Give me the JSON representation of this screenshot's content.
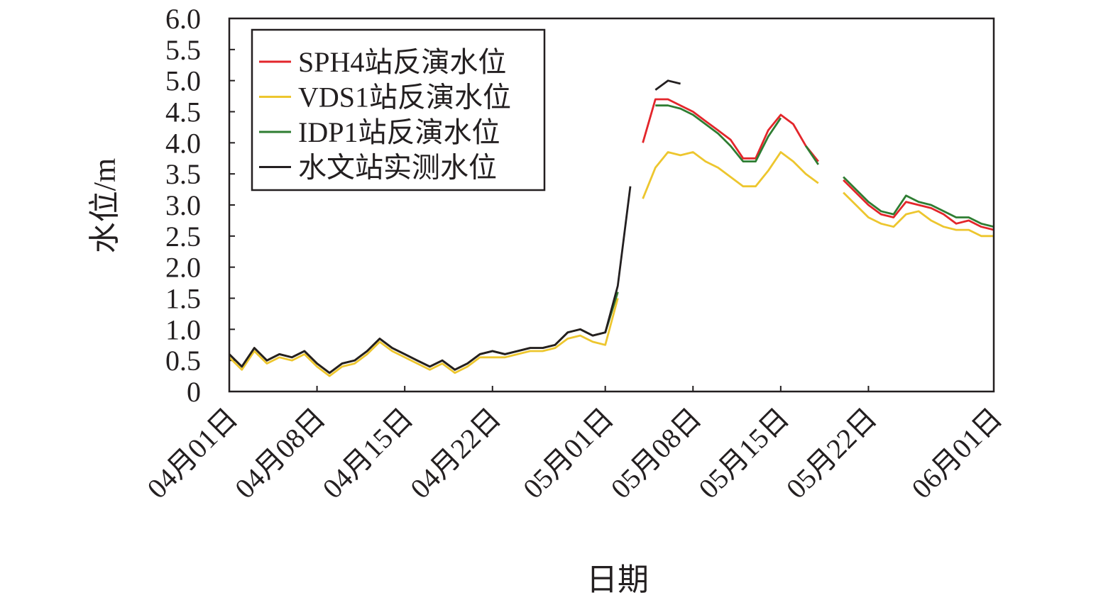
{
  "chart_data": {
    "type": "line",
    "x_label": "日期",
    "y_label": "水位/m",
    "categories": [
      "04月01日",
      null,
      null,
      null,
      null,
      null,
      null,
      "04月08日",
      null,
      null,
      null,
      null,
      null,
      null,
      "04月15日",
      null,
      null,
      null,
      null,
      null,
      null,
      "04月22日",
      null,
      null,
      null,
      null,
      null,
      null,
      null,
      null,
      "05月01日",
      null,
      null,
      null,
      null,
      null,
      null,
      "05月08日",
      null,
      null,
      null,
      null,
      null,
      null,
      "05月15日",
      null,
      null,
      null,
      null,
      null,
      null,
      "05月22日",
      null,
      null,
      null,
      null,
      null,
      null,
      null,
      null,
      null,
      "06月01日"
    ],
    "series": [
      {
        "name": "SPH4站反演水位",
        "color": "#e3262b",
        "values": [
          0.6,
          0.4,
          0.7,
          0.5,
          0.6,
          0.55,
          0.65,
          0.45,
          0.3,
          0.45,
          0.5,
          0.65,
          0.85,
          0.7,
          0.6,
          0.5,
          0.4,
          0.5,
          0.35,
          0.45,
          0.6,
          0.65,
          0.6,
          0.65,
          0.7,
          0.7,
          0.75,
          0.95,
          1.0,
          0.9,
          0.95,
          1.6,
          null,
          4.0,
          4.7,
          4.7,
          4.6,
          4.5,
          4.35,
          4.2,
          4.05,
          3.75,
          3.75,
          4.2,
          4.45,
          4.3,
          3.95,
          3.7,
          null,
          3.4,
          3.2,
          3.0,
          2.85,
          2.8,
          3.05,
          3.0,
          2.95,
          2.85,
          2.7,
          2.75,
          2.65,
          2.6
        ]
      },
      {
        "name": "VDS1站反演水位",
        "color": "#edc62e",
        "values": [
          0.55,
          0.35,
          0.65,
          0.45,
          0.55,
          0.5,
          0.6,
          0.4,
          0.25,
          0.4,
          0.45,
          0.6,
          0.8,
          0.65,
          0.55,
          0.45,
          0.35,
          0.45,
          0.3,
          0.4,
          0.55,
          0.55,
          0.55,
          0.6,
          0.65,
          0.65,
          0.7,
          0.85,
          0.9,
          0.8,
          0.75,
          1.5,
          null,
          3.1,
          3.6,
          3.85,
          3.8,
          3.85,
          3.7,
          3.6,
          3.45,
          3.3,
          3.3,
          3.55,
          3.85,
          3.7,
          3.5,
          3.35,
          null,
          3.2,
          3.0,
          2.8,
          2.7,
          2.65,
          2.85,
          2.9,
          2.75,
          2.65,
          2.6,
          2.6,
          2.5,
          2.5
        ]
      },
      {
        "name": "IDP1站反演水位",
        "color": "#2e7d32",
        "values": [
          0.6,
          0.4,
          0.7,
          0.5,
          0.6,
          0.55,
          0.65,
          0.45,
          0.3,
          0.45,
          0.5,
          0.65,
          0.85,
          0.7,
          0.6,
          0.5,
          0.4,
          0.5,
          0.35,
          0.45,
          0.6,
          0.65,
          0.6,
          0.65,
          0.7,
          0.7,
          0.75,
          0.95,
          1.0,
          0.9,
          0.95,
          1.6,
          null,
          null,
          4.6,
          4.6,
          4.55,
          4.45,
          4.3,
          4.15,
          3.95,
          3.7,
          3.7,
          4.1,
          4.4,
          null,
          3.95,
          3.65,
          null,
          3.45,
          3.25,
          3.05,
          2.9,
          2.85,
          3.15,
          3.05,
          3.0,
          2.9,
          2.8,
          2.8,
          2.7,
          2.65
        ]
      },
      {
        "name": "水文站实测水位",
        "color": "#231f20",
        "values": [
          0.6,
          0.4,
          0.7,
          0.5,
          0.6,
          0.55,
          0.65,
          0.45,
          0.3,
          0.45,
          0.5,
          0.65,
          0.85,
          0.7,
          0.6,
          0.5,
          0.4,
          0.5,
          0.35,
          0.45,
          0.6,
          0.65,
          0.6,
          0.65,
          0.7,
          0.7,
          0.75,
          0.95,
          1.0,
          0.9,
          0.95,
          1.7,
          3.3,
          null,
          4.85,
          5.0,
          4.95,
          null,
          null,
          null,
          null,
          null,
          null,
          null,
          null,
          null,
          null,
          null,
          null,
          null,
          null,
          null,
          null,
          null,
          null,
          null,
          null,
          null,
          null,
          null,
          null,
          null
        ]
      }
    ],
    "ylim": [
      0,
      6.0
    ],
    "yticks": [
      0,
      0.5,
      {
        "value": 1,
        "label": "1.0"
      },
      1.5,
      {
        "value": 2,
        "label": "2.0"
      },
      2.5,
      {
        "value": 3,
        "label": "3.0"
      },
      3.5,
      {
        "value": 4,
        "label": "4.0"
      },
      4.5,
      {
        "value": 5,
        "label": "5.0"
      },
      5.5,
      {
        "value": 6,
        "label": "6.0"
      }
    ],
    "legend": "upper left",
    "grid": false
  }
}
